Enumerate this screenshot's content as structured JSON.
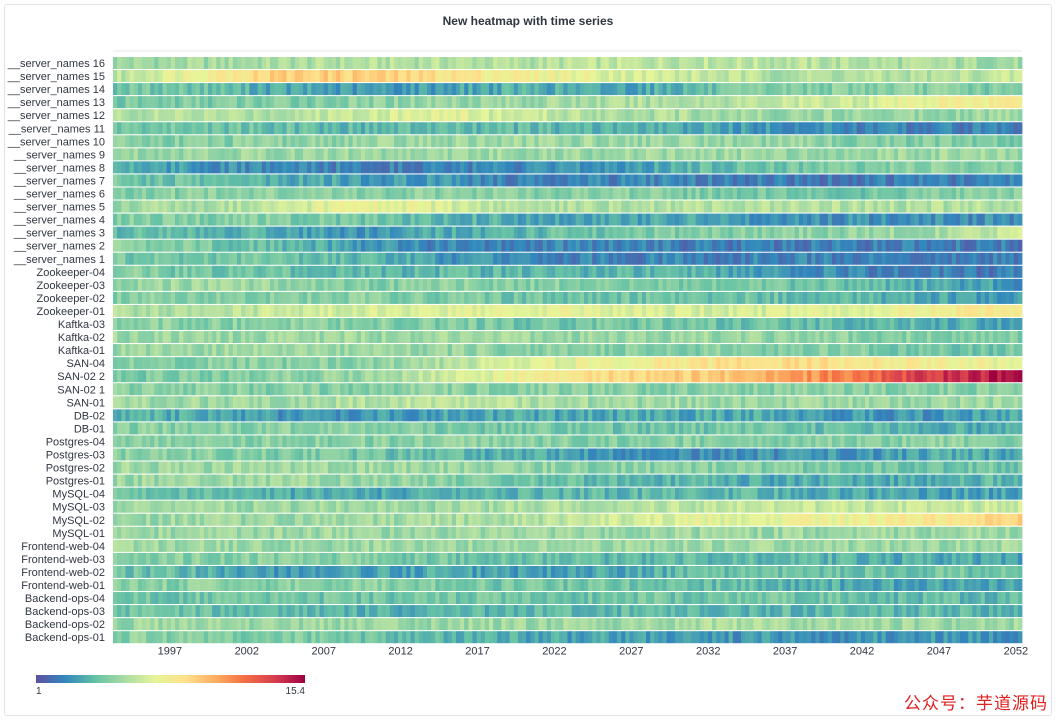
{
  "panel": {
    "title": "New heatmap with time series"
  },
  "watermark": "公众号：芋道源码",
  "chart_data": {
    "type": "heatmap",
    "title": "New heatmap with time series",
    "xlabel": "",
    "ylabel": "",
    "x_ticks": [
      "1997",
      "2002",
      "2007",
      "2012",
      "2017",
      "2022",
      "2027",
      "2032",
      "2037",
      "2042",
      "2047",
      "2052"
    ],
    "x_range": [
      1993.3,
      2052.4
    ],
    "grid": false,
    "color_scale": {
      "min": 1,
      "max": 15.4,
      "min_label": "1",
      "max_label": "15.4",
      "stops": [
        "#5e4fa2",
        "#3288bd",
        "#66c2a5",
        "#abdda4",
        "#e6f598",
        "#fee08b",
        "#fdae61",
        "#f46d43",
        "#d53e4f",
        "#9e0142"
      ]
    },
    "legend_position": "bottom-left",
    "series": [
      {
        "name": "__server_names 16",
        "segment_values": [
          5.5,
          5.6,
          5.8,
          6.0,
          6.1,
          6.0,
          6.3,
          6.4,
          6.2,
          6.0,
          5.8,
          5.6
        ]
      },
      {
        "name": "__server_names 15",
        "segment_values": [
          6.0,
          8.0,
          9.5,
          9.5,
          8.8,
          8.0,
          7.3,
          6.5,
          6.0,
          6.0,
          6.0,
          6.5
        ]
      },
      {
        "name": "__server_names 14",
        "segment_values": [
          4.5,
          4.5,
          3.5,
          3.0,
          3.3,
          3.8,
          3.3,
          4.0,
          4.8,
          5.0,
          5.0,
          4.5
        ]
      },
      {
        "name": "__server_names 13",
        "segment_values": [
          4.5,
          4.8,
          4.8,
          5.0,
          5.5,
          5.5,
          5.8,
          6.0,
          6.3,
          6.8,
          7.8,
          8.5
        ]
      },
      {
        "name": "__server_names 12",
        "segment_values": [
          6.0,
          6.0,
          6.0,
          6.8,
          7.5,
          6.5,
          6.0,
          5.8,
          5.5,
          5.5,
          5.5,
          5.5
        ]
      },
      {
        "name": "__server_names 11",
        "segment_values": [
          4.5,
          4.5,
          4.3,
          4.0,
          4.0,
          4.0,
          3.8,
          3.5,
          3.0,
          2.5,
          2.5,
          2.5
        ]
      },
      {
        "name": "__server_names 10",
        "segment_values": [
          5.0,
          5.0,
          5.0,
          5.3,
          5.5,
          5.5,
          5.5,
          5.5,
          5.3,
          5.0,
          4.8,
          4.5
        ]
      },
      {
        "name": "__server_names 9",
        "segment_values": [
          5.5,
          5.5,
          5.5,
          5.5,
          5.5,
          5.5,
          5.5,
          5.5,
          5.5,
          5.5,
          5.5,
          5.5
        ]
      },
      {
        "name": "__server_names 8",
        "segment_values": [
          4.0,
          3.0,
          2.5,
          2.5,
          2.5,
          2.5,
          3.0,
          4.0,
          4.5,
          4.8,
          5.0,
          5.0
        ]
      },
      {
        "name": "__server_names 7",
        "segment_values": [
          4.5,
          4.3,
          3.8,
          3.3,
          3.0,
          2.5,
          2.5,
          2.5,
          2.3,
          2.3,
          2.3,
          2.3
        ]
      },
      {
        "name": "__server_names 6",
        "segment_values": [
          5.0,
          5.0,
          5.0,
          5.0,
          5.0,
          5.0,
          5.0,
          4.8,
          4.5,
          4.5,
          4.8,
          5.0
        ]
      },
      {
        "name": "__server_names 5",
        "segment_values": [
          5.5,
          5.8,
          6.5,
          7.8,
          7.0,
          6.0,
          6.0,
          6.0,
          6.0,
          6.0,
          6.0,
          6.0
        ]
      },
      {
        "name": "__server_names 4",
        "segment_values": [
          5.0,
          5.0,
          4.8,
          4.5,
          4.0,
          3.5,
          3.5,
          3.5,
          3.0,
          2.8,
          2.8,
          2.8
        ]
      },
      {
        "name": "__server_names 3",
        "segment_values": [
          4.0,
          4.0,
          3.5,
          3.0,
          3.5,
          4.0,
          4.5,
          4.8,
          5.0,
          5.3,
          5.8,
          6.5
        ]
      },
      {
        "name": "__server_names 2",
        "segment_values": [
          5.0,
          4.8,
          4.0,
          3.0,
          2.5,
          2.5,
          2.5,
          2.3,
          2.3,
          2.3,
          2.3,
          2.3
        ]
      },
      {
        "name": "__server_names 1",
        "segment_values": [
          4.5,
          4.5,
          4.5,
          4.0,
          3.0,
          2.5,
          2.5,
          2.5,
          2.5,
          2.5,
          2.3,
          2.3
        ]
      },
      {
        "name": "Zookeeper-04",
        "segment_values": [
          5.0,
          4.5,
          4.3,
          4.0,
          4.0,
          4.0,
          4.0,
          3.8,
          3.0,
          2.5,
          2.3,
          2.3
        ]
      },
      {
        "name": "Zookeeper-03",
        "segment_values": [
          5.5,
          5.5,
          5.3,
          5.0,
          5.0,
          5.0,
          5.0,
          4.8,
          4.5,
          4.3,
          3.5,
          3.0
        ]
      },
      {
        "name": "Zookeeper-02",
        "segment_values": [
          5.0,
          5.0,
          5.0,
          5.0,
          4.8,
          4.5,
          4.5,
          4.5,
          4.3,
          4.0,
          3.5,
          3.0
        ]
      },
      {
        "name": "Zookeeper-01",
        "segment_values": [
          6.0,
          6.0,
          6.5,
          7.0,
          7.3,
          7.5,
          7.3,
          7.0,
          7.0,
          7.5,
          8.0,
          8.5
        ]
      },
      {
        "name": "Kaftka-03",
        "segment_values": [
          5.0,
          5.0,
          5.0,
          5.0,
          4.8,
          4.5,
          4.5,
          4.5,
          4.3,
          4.0,
          3.8,
          3.5
        ]
      },
      {
        "name": "Kaftka-02",
        "segment_values": [
          5.5,
          5.5,
          5.5,
          5.5,
          5.5,
          5.5,
          5.5,
          5.5,
          5.3,
          5.0,
          5.0,
          5.0
        ]
      },
      {
        "name": "Kaftka-01",
        "segment_values": [
          5.5,
          5.5,
          5.5,
          5.5,
          5.3,
          5.0,
          5.0,
          5.0,
          5.0,
          4.8,
          4.5,
          4.5
        ]
      },
      {
        "name": "SAN-04",
        "segment_values": [
          5.0,
          5.0,
          5.0,
          5.0,
          6.0,
          7.0,
          7.8,
          8.5,
          9.0,
          8.5,
          8.0,
          7.5
        ]
      },
      {
        "name": "SAN-02 2",
        "segment_values": [
          4.5,
          4.8,
          5.0,
          5.5,
          6.5,
          8.0,
          9.0,
          9.5,
          10.5,
          12.0,
          14.0,
          15.0
        ]
      },
      {
        "name": "SAN-02 1",
        "segment_values": [
          5.0,
          5.0,
          5.0,
          5.0,
          5.0,
          5.0,
          5.0,
          5.0,
          5.0,
          5.0,
          5.0,
          5.0
        ]
      },
      {
        "name": "SAN-01",
        "segment_values": [
          5.5,
          5.5,
          5.5,
          6.0,
          6.5,
          6.0,
          5.5,
          5.5,
          5.5,
          5.5,
          5.5,
          5.5
        ]
      },
      {
        "name": "DB-02",
        "segment_values": [
          4.0,
          3.5,
          3.0,
          3.0,
          3.3,
          3.5,
          3.5,
          3.5,
          3.5,
          3.0,
          3.0,
          3.5
        ]
      },
      {
        "name": "DB-01",
        "segment_values": [
          5.0,
          5.0,
          5.0,
          5.0,
          4.8,
          4.5,
          4.5,
          4.5,
          4.3,
          4.0,
          3.8,
          3.5
        ]
      },
      {
        "name": "Postgres-04",
        "segment_values": [
          5.0,
          5.0,
          5.0,
          5.0,
          5.0,
          5.0,
          5.0,
          5.0,
          5.0,
          5.0,
          5.0,
          5.0
        ]
      },
      {
        "name": "Postgres-03",
        "segment_values": [
          5.0,
          5.0,
          4.8,
          4.5,
          4.0,
          3.5,
          3.0,
          2.8,
          2.8,
          3.0,
          3.5,
          3.5
        ]
      },
      {
        "name": "Postgres-02",
        "segment_values": [
          5.5,
          5.5,
          5.5,
          5.5,
          5.5,
          5.3,
          5.0,
          5.0,
          4.8,
          4.5,
          4.5,
          4.5
        ]
      },
      {
        "name": "Postgres-01",
        "segment_values": [
          5.5,
          5.5,
          5.5,
          5.3,
          5.0,
          4.5,
          4.0,
          3.8,
          3.5,
          3.5,
          3.8,
          4.0
        ]
      },
      {
        "name": "MySQL-04",
        "segment_values": [
          4.5,
          4.0,
          3.5,
          3.5,
          3.8,
          4.0,
          4.0,
          4.0,
          3.8,
          3.5,
          3.3,
          3.3
        ]
      },
      {
        "name": "MySQL-03",
        "segment_values": [
          5.5,
          5.5,
          5.5,
          5.5,
          5.5,
          5.8,
          6.0,
          6.3,
          6.5,
          6.5,
          6.5,
          6.5
        ]
      },
      {
        "name": "MySQL-02",
        "segment_values": [
          5.5,
          5.5,
          5.5,
          5.5,
          5.8,
          6.0,
          6.5,
          7.3,
          7.5,
          7.8,
          8.5,
          9.5
        ]
      },
      {
        "name": "MySQL-01",
        "segment_values": [
          5.5,
          5.5,
          5.5,
          5.5,
          5.5,
          5.5,
          5.5,
          5.5,
          5.5,
          5.5,
          5.5,
          5.5
        ]
      },
      {
        "name": "Frontend-web-04",
        "segment_values": [
          5.5,
          5.5,
          5.5,
          5.5,
          5.5,
          5.5,
          5.5,
          5.5,
          5.5,
          5.5,
          5.5,
          5.5
        ]
      },
      {
        "name": "Frontend-web-03",
        "segment_values": [
          5.0,
          5.0,
          5.0,
          4.8,
          4.5,
          4.3,
          4.0,
          4.0,
          4.0,
          3.8,
          3.5,
          3.5
        ]
      },
      {
        "name": "Frontend-web-02",
        "segment_values": [
          4.5,
          4.0,
          3.0,
          3.3,
          3.5,
          3.0,
          3.5,
          4.0,
          4.3,
          4.5,
          4.5,
          4.5
        ]
      },
      {
        "name": "Frontend-web-01",
        "segment_values": [
          5.0,
          5.0,
          5.0,
          5.0,
          4.8,
          4.5,
          4.5,
          4.3,
          4.0,
          3.5,
          3.3,
          3.3
        ]
      },
      {
        "name": "Backend-ops-04",
        "segment_values": [
          4.5,
          4.5,
          4.5,
          4.5,
          4.5,
          4.5,
          4.5,
          4.5,
          4.5,
          4.3,
          4.0,
          4.0
        ]
      },
      {
        "name": "Backend-ops-03",
        "segment_values": [
          4.5,
          4.3,
          4.0,
          3.8,
          3.8,
          4.0,
          4.0,
          4.0,
          4.0,
          4.0,
          4.0,
          4.0
        ]
      },
      {
        "name": "Backend-ops-02",
        "segment_values": [
          5.5,
          5.5,
          5.5,
          5.5,
          5.5,
          5.5,
          5.5,
          5.8,
          5.8,
          5.5,
          5.5,
          5.5
        ]
      },
      {
        "name": "Backend-ops-01",
        "segment_values": [
          5.0,
          5.0,
          4.8,
          4.5,
          4.0,
          3.5,
          3.3,
          3.0,
          3.0,
          3.0,
          3.0,
          3.0
        ]
      }
    ]
  }
}
